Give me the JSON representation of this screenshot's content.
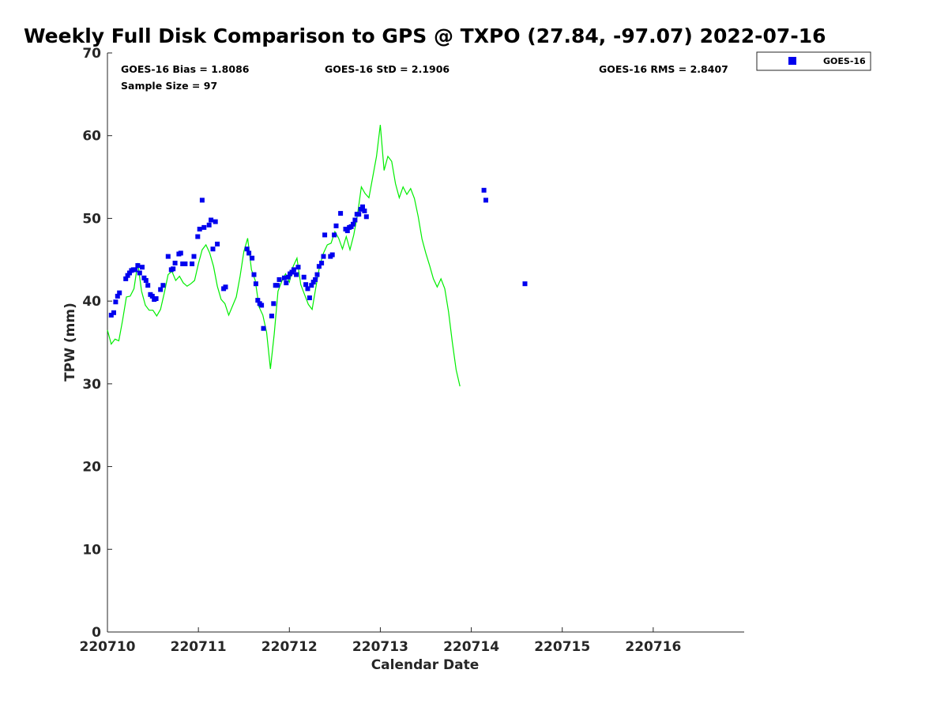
{
  "chart_data": {
    "type": "scatter",
    "title": "Weekly Full Disk Comparison to GPS @ TXPO (27.84, -97.07) 2022-07-16",
    "xlabel": "Calendar Date",
    "ylabel": "TPW (mm)",
    "xlim": [
      "2022-07-10T00:00",
      "2022-07-17T00:00"
    ],
    "ylim": [
      0,
      70
    ],
    "x_ticks": [
      "220710",
      "220711",
      "220712",
      "220713",
      "220714",
      "220715",
      "220716"
    ],
    "y_ticks": [
      "0",
      "10",
      "20",
      "30",
      "40",
      "50",
      "60",
      "70"
    ],
    "grid": false,
    "legend_position": "top-right",
    "stats": {
      "bias": "GOES-16 Bias = 1.8086",
      "std": "GOES-16 StD = 2.1906",
      "rms": "GOES-16 RMS = 2.8407",
      "sample_size": "Sample Size = 97"
    },
    "series": [
      {
        "name": "GOES-16",
        "kind": "scatter",
        "marker": "square",
        "color": "#0000ee",
        "points": [
          [
            "2022-07-10T01:00",
            38.3
          ],
          [
            "2022-07-10T01:40",
            38.6
          ],
          [
            "2022-07-10T02:10",
            39.9
          ],
          [
            "2022-07-10T02:40",
            40.6
          ],
          [
            "2022-07-10T03:10",
            41.0
          ],
          [
            "2022-07-10T04:50",
            42.7
          ],
          [
            "2022-07-10T05:20",
            43.1
          ],
          [
            "2022-07-10T05:50",
            43.4
          ],
          [
            "2022-07-10T06:20",
            43.7
          ],
          [
            "2022-07-10T06:50",
            43.8
          ],
          [
            "2022-07-10T07:20",
            43.8
          ],
          [
            "2022-07-10T08:00",
            44.3
          ],
          [
            "2022-07-10T08:30",
            43.4
          ],
          [
            "2022-07-10T09:10",
            44.1
          ],
          [
            "2022-07-10T09:40",
            42.8
          ],
          [
            "2022-07-10T10:10",
            42.5
          ],
          [
            "2022-07-10T10:40",
            41.9
          ],
          [
            "2022-07-10T11:20",
            40.8
          ],
          [
            "2022-07-10T11:50",
            40.6
          ],
          [
            "2022-07-10T12:20",
            40.2
          ],
          [
            "2022-07-10T12:50",
            40.3
          ],
          [
            "2022-07-10T14:00",
            41.4
          ],
          [
            "2022-07-10T14:40",
            41.9
          ],
          [
            "2022-07-10T16:00",
            45.4
          ],
          [
            "2022-07-10T16:50",
            43.8
          ],
          [
            "2022-07-10T17:20",
            43.9
          ],
          [
            "2022-07-10T17:50",
            44.6
          ],
          [
            "2022-07-10T18:50",
            45.7
          ],
          [
            "2022-07-10T19:20",
            45.8
          ],
          [
            "2022-07-10T19:50",
            44.5
          ],
          [
            "2022-07-10T20:30",
            44.5
          ],
          [
            "2022-07-10T22:20",
            44.5
          ],
          [
            "2022-07-10T22:50",
            45.4
          ],
          [
            "2022-07-10T23:50",
            47.8
          ],
          [
            "2022-07-11T00:20",
            48.7
          ],
          [
            "2022-07-11T01:00",
            52.2
          ],
          [
            "2022-07-11T01:30",
            48.9
          ],
          [
            "2022-07-11T02:50",
            49.2
          ],
          [
            "2022-07-11T03:20",
            49.8
          ],
          [
            "2022-07-11T03:50",
            46.3
          ],
          [
            "2022-07-11T04:30",
            49.6
          ],
          [
            "2022-07-11T05:00",
            46.9
          ],
          [
            "2022-07-11T06:40",
            41.5
          ],
          [
            "2022-07-11T07:10",
            41.7
          ],
          [
            "2022-07-11T12:50",
            46.3
          ],
          [
            "2022-07-11T13:20",
            45.8
          ],
          [
            "2022-07-11T14:10",
            45.2
          ],
          [
            "2022-07-11T14:40",
            43.2
          ],
          [
            "2022-07-11T15:10",
            42.1
          ],
          [
            "2022-07-11T15:40",
            40.1
          ],
          [
            "2022-07-11T16:10",
            39.7
          ],
          [
            "2022-07-11T16:40",
            39.5
          ],
          [
            "2022-07-11T17:10",
            36.7
          ],
          [
            "2022-07-11T19:20",
            38.2
          ],
          [
            "2022-07-11T19:50",
            39.7
          ],
          [
            "2022-07-11T20:20",
            41.9
          ],
          [
            "2022-07-11T20:50",
            41.9
          ],
          [
            "2022-07-11T21:20",
            42.6
          ],
          [
            "2022-07-11T22:40",
            42.8
          ],
          [
            "2022-07-11T23:10",
            42.2
          ],
          [
            "2022-07-11T23:40",
            42.9
          ],
          [
            "2022-07-12T00:10",
            43.3
          ],
          [
            "2022-07-12T00:40",
            43.5
          ],
          [
            "2022-07-12T01:10",
            43.8
          ],
          [
            "2022-07-12T01:50",
            43.2
          ],
          [
            "2022-07-12T02:20",
            44.1
          ],
          [
            "2022-07-12T03:50",
            42.9
          ],
          [
            "2022-07-12T04:20",
            42.0
          ],
          [
            "2022-07-12T04:50",
            41.5
          ],
          [
            "2022-07-12T05:20",
            40.4
          ],
          [
            "2022-07-12T05:50",
            41.9
          ],
          [
            "2022-07-12T06:20",
            42.3
          ],
          [
            "2022-07-12T06:50",
            42.6
          ],
          [
            "2022-07-12T07:20",
            43.2
          ],
          [
            "2022-07-12T07:50",
            44.2
          ],
          [
            "2022-07-12T08:30",
            44.6
          ],
          [
            "2022-07-12T09:00",
            45.4
          ],
          [
            "2022-07-12T09:20",
            48.0
          ],
          [
            "2022-07-12T10:50",
            45.4
          ],
          [
            "2022-07-12T11:20",
            45.6
          ],
          [
            "2022-07-12T11:50",
            48.0
          ],
          [
            "2022-07-12T12:20",
            49.1
          ],
          [
            "2022-07-12T13:30",
            50.6
          ],
          [
            "2022-07-12T14:50",
            48.7
          ],
          [
            "2022-07-12T15:20",
            48.5
          ],
          [
            "2022-07-12T15:50",
            48.9
          ],
          [
            "2022-07-12T16:20",
            49.0
          ],
          [
            "2022-07-12T16:50",
            49.3
          ],
          [
            "2022-07-12T17:20",
            49.8
          ],
          [
            "2022-07-12T17:50",
            50.5
          ],
          [
            "2022-07-12T18:20",
            50.5
          ],
          [
            "2022-07-12T18:50",
            51.1
          ],
          [
            "2022-07-12T19:20",
            51.4
          ],
          [
            "2022-07-12T19:50",
            50.9
          ],
          [
            "2022-07-12T20:20",
            50.2
          ],
          [
            "2022-07-14T03:20",
            53.4
          ],
          [
            "2022-07-14T03:50",
            52.2
          ],
          [
            "2022-07-14T14:10",
            42.1
          ]
        ]
      },
      {
        "name": "",
        "kind": "line",
        "color": "#00ee00",
        "points": [
          [
            "2022-07-10T00:00",
            36.5
          ],
          [
            "2022-07-10T01:00",
            34.8
          ],
          [
            "2022-07-10T02:00",
            35.4
          ],
          [
            "2022-07-10T03:00",
            35.2
          ],
          [
            "2022-07-10T04:00",
            37.7
          ],
          [
            "2022-07-10T05:00",
            40.5
          ],
          [
            "2022-07-10T06:00",
            40.6
          ],
          [
            "2022-07-10T07:00",
            41.5
          ],
          [
            "2022-07-10T08:00",
            44.6
          ],
          [
            "2022-07-10T09:00",
            41.2
          ],
          [
            "2022-07-10T10:00",
            39.5
          ],
          [
            "2022-07-10T11:00",
            38.9
          ],
          [
            "2022-07-10T12:00",
            38.9
          ],
          [
            "2022-07-10T13:00",
            38.2
          ],
          [
            "2022-07-10T14:00",
            39.0
          ],
          [
            "2022-07-10T15:00",
            41.0
          ],
          [
            "2022-07-10T16:00",
            43.2
          ],
          [
            "2022-07-10T17:00",
            43.6
          ],
          [
            "2022-07-10T18:00",
            42.5
          ],
          [
            "2022-07-10T19:00",
            43.0
          ],
          [
            "2022-07-10T20:00",
            42.2
          ],
          [
            "2022-07-10T21:00",
            41.8
          ],
          [
            "2022-07-10T22:00",
            42.1
          ],
          [
            "2022-07-10T23:00",
            42.5
          ],
          [
            "2022-07-11T00:00",
            44.5
          ],
          [
            "2022-07-11T01:00",
            46.2
          ],
          [
            "2022-07-11T02:00",
            46.8
          ],
          [
            "2022-07-11T03:00",
            45.8
          ],
          [
            "2022-07-11T04:00",
            44.2
          ],
          [
            "2022-07-11T05:00",
            41.8
          ],
          [
            "2022-07-11T06:00",
            40.2
          ],
          [
            "2022-07-11T07:00",
            39.7
          ],
          [
            "2022-07-11T08:00",
            38.3
          ],
          [
            "2022-07-11T09:00",
            39.4
          ],
          [
            "2022-07-11T10:00",
            40.5
          ],
          [
            "2022-07-11T11:00",
            43.0
          ],
          [
            "2022-07-11T12:00",
            46.0
          ],
          [
            "2022-07-11T13:00",
            47.6
          ],
          [
            "2022-07-11T14:00",
            43.8
          ],
          [
            "2022-07-11T15:00",
            42.5
          ],
          [
            "2022-07-11T16:00",
            39.3
          ],
          [
            "2022-07-11T17:00",
            38.3
          ],
          [
            "2022-07-11T18:00",
            36.2
          ],
          [
            "2022-07-11T19:00",
            31.8
          ],
          [
            "2022-07-11T20:00",
            36.0
          ],
          [
            "2022-07-11T21:00",
            41.2
          ],
          [
            "2022-07-11T22:00",
            42.4
          ],
          [
            "2022-07-11T23:00",
            43.3
          ],
          [
            "2022-07-12T00:00",
            42.3
          ],
          [
            "2022-07-12T01:00",
            44.2
          ],
          [
            "2022-07-12T02:00",
            45.2
          ],
          [
            "2022-07-12T03:00",
            42.0
          ],
          [
            "2022-07-12T04:00",
            40.8
          ],
          [
            "2022-07-12T05:00",
            39.6
          ],
          [
            "2022-07-12T06:00",
            39.0
          ],
          [
            "2022-07-12T07:00",
            41.7
          ],
          [
            "2022-07-12T08:00",
            44.3
          ],
          [
            "2022-07-12T09:00",
            45.8
          ],
          [
            "2022-07-12T10:00",
            46.8
          ],
          [
            "2022-07-12T11:00",
            47.0
          ],
          [
            "2022-07-12T12:00",
            48.4
          ],
          [
            "2022-07-12T13:00",
            47.6
          ],
          [
            "2022-07-12T14:00",
            46.3
          ],
          [
            "2022-07-12T15:00",
            47.8
          ],
          [
            "2022-07-12T16:00",
            46.2
          ],
          [
            "2022-07-12T17:00",
            48.0
          ],
          [
            "2022-07-12T18:00",
            50.5
          ],
          [
            "2022-07-12T19:00",
            53.8
          ],
          [
            "2022-07-12T20:00",
            53.0
          ],
          [
            "2022-07-12T21:00",
            52.5
          ],
          [
            "2022-07-12T22:00",
            55.0
          ],
          [
            "2022-07-12T23:00",
            57.5
          ],
          [
            "2022-07-13T00:00",
            61.3
          ],
          [
            "2022-07-13T01:00",
            55.8
          ],
          [
            "2022-07-13T02:00",
            57.5
          ],
          [
            "2022-07-13T03:00",
            56.9
          ],
          [
            "2022-07-13T04:00",
            54.2
          ],
          [
            "2022-07-13T05:00",
            52.5
          ],
          [
            "2022-07-13T06:00",
            53.8
          ],
          [
            "2022-07-13T07:00",
            52.9
          ],
          [
            "2022-07-13T08:00",
            53.6
          ],
          [
            "2022-07-13T09:00",
            52.4
          ],
          [
            "2022-07-13T10:00",
            50.2
          ],
          [
            "2022-07-13T11:00",
            47.5
          ],
          [
            "2022-07-13T12:00",
            45.8
          ],
          [
            "2022-07-13T13:00",
            44.3
          ],
          [
            "2022-07-13T14:00",
            42.7
          ],
          [
            "2022-07-13T15:00",
            41.7
          ],
          [
            "2022-07-13T16:00",
            42.7
          ],
          [
            "2022-07-13T17:00",
            41.5
          ],
          [
            "2022-07-13T18:00",
            38.7
          ],
          [
            "2022-07-13T19:00",
            35.0
          ],
          [
            "2022-07-13T20:00",
            31.7
          ],
          [
            "2022-07-13T21:00",
            29.7
          ]
        ]
      }
    ]
  }
}
